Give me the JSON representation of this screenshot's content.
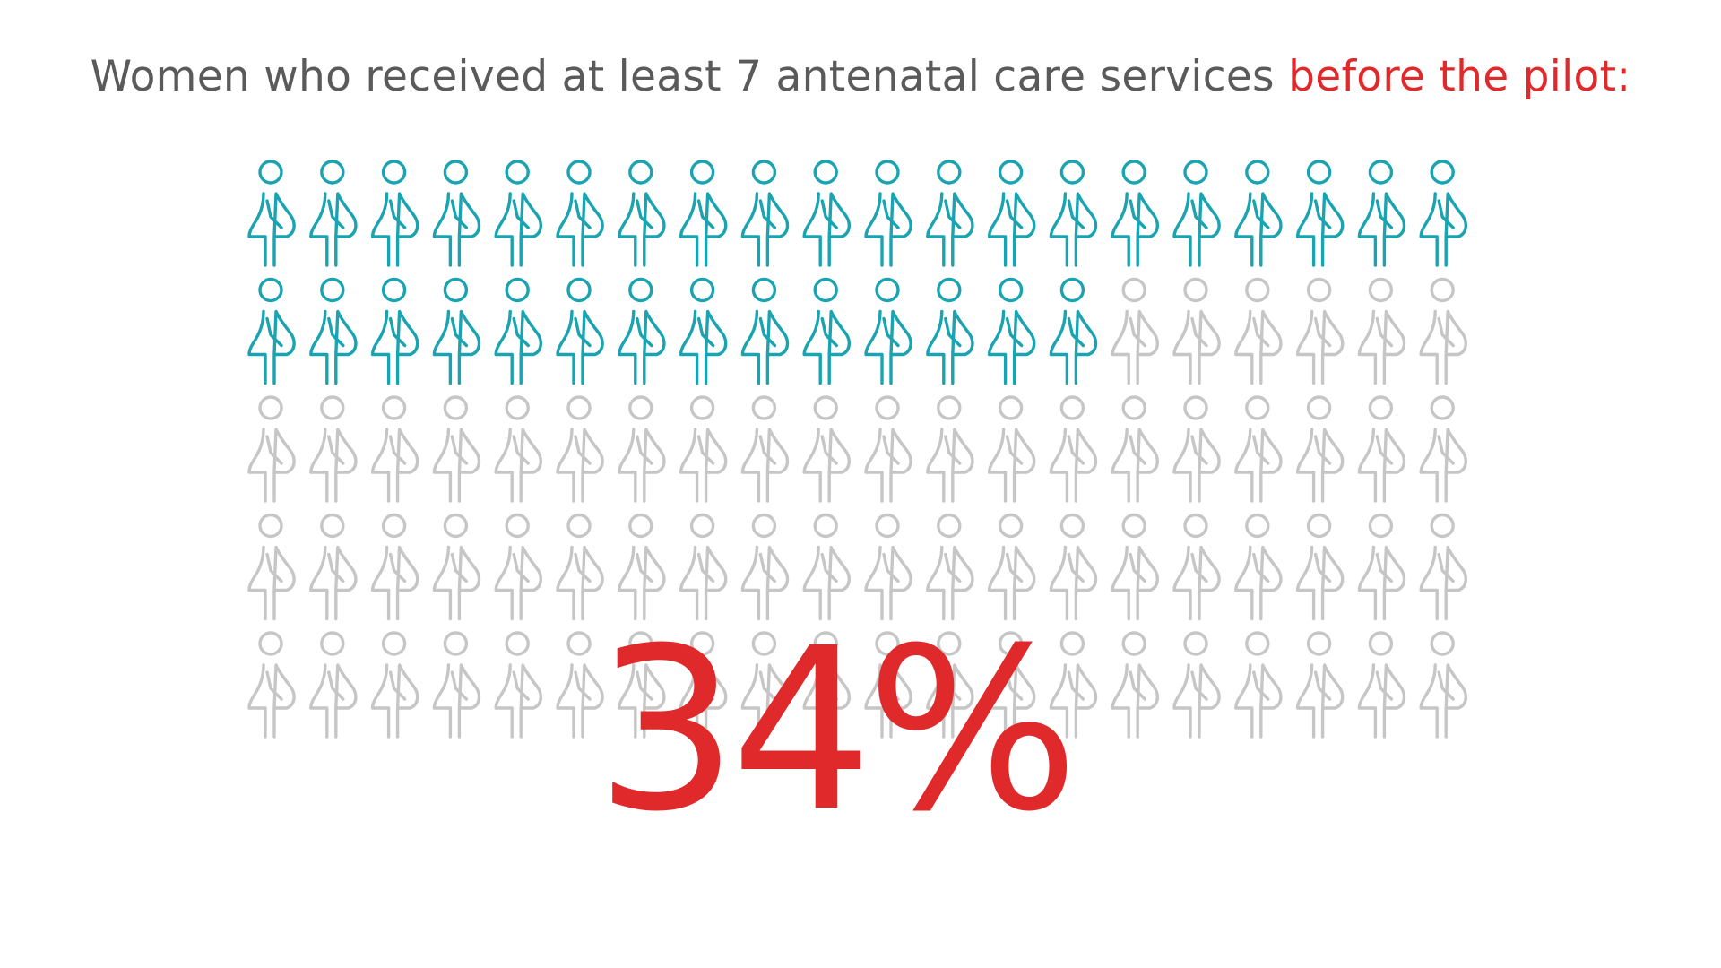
{
  "title": {
    "lead": "Women who received at least 7 antenatal care services",
    "highlight": "before the pilot:"
  },
  "colors": {
    "filled": "#1aa3b0",
    "empty": "#c6c6c6",
    "title": "#5a5a5a",
    "accent": "#e0292b"
  },
  "chart_data": {
    "type": "pictogram",
    "icon": "pregnant-woman-icon",
    "rows": 5,
    "columns": 20,
    "total": 100,
    "filled": 34,
    "label": "34%"
  }
}
